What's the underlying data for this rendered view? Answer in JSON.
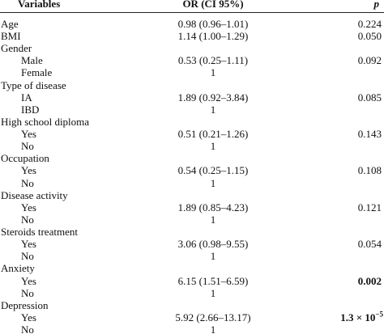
{
  "table": {
    "header": [
      "Variables",
      "OR (CI 95%)",
      "p"
    ],
    "rows": [
      {
        "label": "Age",
        "or": "0.98 (0.96–1.01)",
        "p": "0.224"
      },
      {
        "label": "BMI",
        "or": "1.14 (1.00–1.29)",
        "p": "0.050"
      },
      {
        "label": "Gender",
        "items": [
          {
            "label": "Male",
            "or": "0.53 (0.25–1.11)",
            "p": "0.092"
          },
          {
            "label": "Female",
            "or": "1"
          }
        ]
      },
      {
        "label": "Type of disease",
        "items": [
          {
            "label": "IA",
            "or": "1.89 (0.92–3.84)",
            "p": "0.085"
          },
          {
            "label": "IBD",
            "or": "1"
          }
        ]
      },
      {
        "label": "High school diploma",
        "items": [
          {
            "label": "Yes",
            "or": "0.51 (0.21–1.26)",
            "p": "0.143"
          },
          {
            "label": "No",
            "or": "1"
          }
        ]
      },
      {
        "label": "Occupation",
        "items": [
          {
            "label": "Yes",
            "or": "0.54 (0.25–1.15)",
            "p": "0.108"
          },
          {
            "label": "No",
            "or": "1"
          }
        ]
      },
      {
        "label": "Disease activity",
        "items": [
          {
            "label": "Yes",
            "or": "1.89 (0.85–4.23)",
            "p": "0.121"
          },
          {
            "label": "No",
            "or": "1"
          }
        ]
      },
      {
        "label": "Steroids treatment",
        "items": [
          {
            "label": "Yes",
            "or": "3.06 (0.98–9.55)",
            "p": "0.054"
          },
          {
            "label": "No",
            "or": "1"
          }
        ]
      },
      {
        "label": "Anxiety",
        "items": [
          {
            "label": "Yes",
            "or": "6.15 (1.51–6.59)",
            "p": "0.002",
            "p_bold": true
          },
          {
            "label": "No",
            "or": "1"
          }
        ]
      },
      {
        "label": "Depression",
        "items": [
          {
            "label": "Yes",
            "or": "5.92 (2.66–13.17)",
            "p": "1.3 × 10",
            "p_exp": "−5",
            "p_bold": true
          },
          {
            "label": "No",
            "or": "1"
          }
        ]
      }
    ]
  }
}
